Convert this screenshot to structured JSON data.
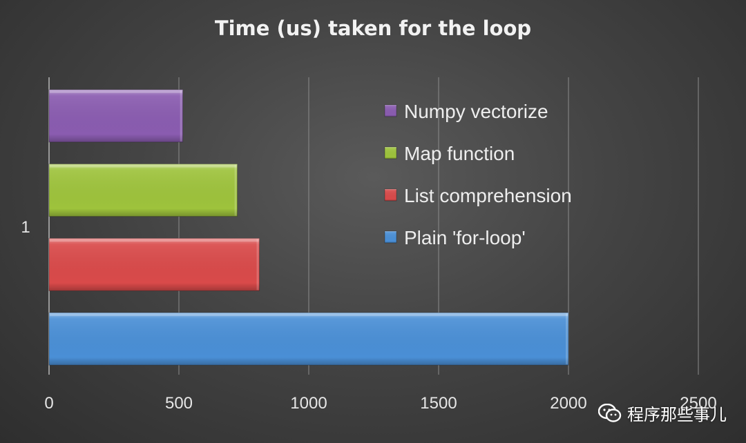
{
  "chart_data": {
    "type": "bar",
    "orientation": "horizontal",
    "title": "Time (us) taken for the loop",
    "categories": [
      "1"
    ],
    "series": [
      {
        "name": "Plain 'for-loop'",
        "values": [
          2000
        ],
        "color": "#4a8fd6"
      },
      {
        "name": "List comprehension",
        "values": [
          810
        ],
        "color": "#d94a4a"
      },
      {
        "name": "Map function",
        "values": [
          725
        ],
        "color": "#9ec33c"
      },
      {
        "name": "Numpy vectorize",
        "values": [
          515
        ],
        "color": "#8a5cb0"
      }
    ],
    "xlim": [
      0,
      2500
    ],
    "xticks": [
      "0",
      "500",
      "1000",
      "1500",
      "2000",
      "2500"
    ],
    "grid": "vertical",
    "legend_position": "inside-right, reversed order"
  },
  "watermark": {
    "text": "程序那些事儿",
    "icon": "wechat-icon"
  }
}
